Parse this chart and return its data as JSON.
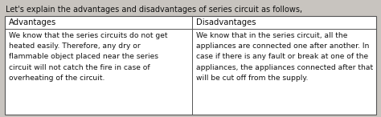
{
  "title": "Let's explain the advantages and disadvantages of series circuit as follows,",
  "col1_header": "Advantages",
  "col2_header": "Disadvantages",
  "col1_body": "We know that the series circuits do not get\nheated easily. Therefore, any dry or\nflammable object placed near the series\ncircuit will not catch the fire in case of\noverheating of the circuit.",
  "col2_body": "We know that in the series circuit, all the\nappliances are connected one after another. In\ncase if there is any fault or break at one of the\nappliances, the appliances connected after that\nwill be cut off from the supply.",
  "bg_color": "#c8c4bf",
  "table_bg": "#ffffff",
  "border_color": "#555555",
  "title_fontsize": 7.0,
  "header_fontsize": 7.2,
  "body_fontsize": 6.6,
  "title_color": "#111111",
  "header_color": "#111111",
  "body_color": "#111111",
  "figw": 4.74,
  "figh": 1.46,
  "dpi": 100
}
